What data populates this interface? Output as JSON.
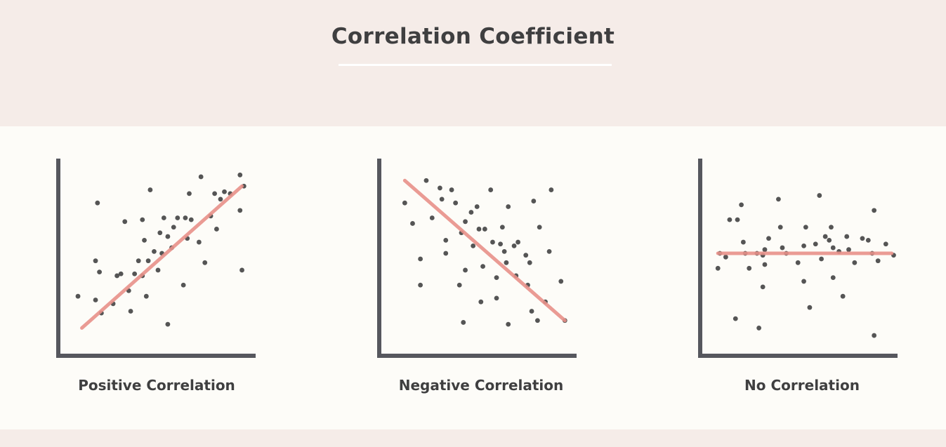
{
  "title": "Correlation Coefficient",
  "colors": {
    "axis": "#56575e",
    "point": "#555555",
    "trend": "#e8918a"
  },
  "chart_data": [
    {
      "type": "scatter",
      "title": "Positive Correlation",
      "xlim": [
        0,
        100
      ],
      "ylim": [
        0,
        100
      ],
      "trend": {
        "from": [
          11,
          13
        ],
        "to": [
          93,
          89
        ]
      },
      "points": [
        [
          9,
          30
        ],
        [
          18,
          28
        ],
        [
          19,
          80
        ],
        [
          18,
          49
        ],
        [
          20,
          43
        ],
        [
          21,
          21
        ],
        [
          27,
          26
        ],
        [
          29,
          41
        ],
        [
          31,
          42
        ],
        [
          33,
          70
        ],
        [
          35,
          33
        ],
        [
          36,
          22
        ],
        [
          38,
          42
        ],
        [
          40,
          49
        ],
        [
          42,
          41
        ],
        [
          42,
          71
        ],
        [
          43,
          60
        ],
        [
          44,
          30
        ],
        [
          45,
          49
        ],
        [
          46,
          87
        ],
        [
          48,
          54
        ],
        [
          50,
          44
        ],
        [
          51,
          64
        ],
        [
          52,
          53
        ],
        [
          53,
          72
        ],
        [
          55,
          62
        ],
        [
          55,
          15
        ],
        [
          57,
          56
        ],
        [
          58,
          67
        ],
        [
          60,
          72
        ],
        [
          63,
          36
        ],
        [
          64,
          72
        ],
        [
          65,
          61
        ],
        [
          66,
          85
        ],
        [
          67,
          71
        ],
        [
          71,
          59
        ],
        [
          72,
          94
        ],
        [
          74,
          48
        ],
        [
          77,
          73
        ],
        [
          79,
          85
        ],
        [
          80,
          66
        ],
        [
          82,
          82
        ],
        [
          84,
          86
        ],
        [
          87,
          85
        ],
        [
          92,
          95
        ],
        [
          92,
          76
        ],
        [
          93,
          44
        ],
        [
          94,
          89
        ]
      ]
    },
    {
      "type": "scatter",
      "title": "Negative Correlation",
      "xlim": [
        0,
        100
      ],
      "ylim": [
        0,
        100
      ],
      "trend": {
        "from": [
          12,
          92
        ],
        "to": [
          94,
          17
        ]
      },
      "points": [
        [
          12,
          80
        ],
        [
          16,
          69
        ],
        [
          20,
          50
        ],
        [
          20,
          36
        ],
        [
          23,
          92
        ],
        [
          26,
          72
        ],
        [
          30,
          88
        ],
        [
          31,
          82
        ],
        [
          33,
          60
        ],
        [
          33,
          53
        ],
        [
          36,
          87
        ],
        [
          38,
          80
        ],
        [
          40,
          36
        ],
        [
          41,
          64
        ],
        [
          42,
          16
        ],
        [
          43,
          70
        ],
        [
          43,
          44
        ],
        [
          46,
          75
        ],
        [
          47,
          57
        ],
        [
          49,
          78
        ],
        [
          50,
          66
        ],
        [
          51,
          27
        ],
        [
          52,
          46
        ],
        [
          53,
          66
        ],
        [
          56,
          87
        ],
        [
          57,
          59
        ],
        [
          59,
          40
        ],
        [
          59,
          29
        ],
        [
          61,
          58
        ],
        [
          62,
          67
        ],
        [
          63,
          54
        ],
        [
          64,
          48
        ],
        [
          65,
          78
        ],
        [
          65,
          15
        ],
        [
          68,
          57
        ],
        [
          69,
          41
        ],
        [
          70,
          59
        ],
        [
          74,
          52
        ],
        [
          75,
          36
        ],
        [
          76,
          48
        ],
        [
          77,
          22
        ],
        [
          78,
          81
        ],
        [
          80,
          17
        ],
        [
          81,
          67
        ],
        [
          84,
          27
        ],
        [
          86,
          54
        ],
        [
          87,
          87
        ],
        [
          92,
          38
        ],
        [
          94,
          17
        ]
      ]
    },
    {
      "type": "scatter",
      "title": "No Correlation",
      "xlim": [
        0,
        100
      ],
      "ylim": [
        0,
        100
      ],
      "trend": {
        "from": [
          8,
          53
        ],
        "to": [
          97,
          53
        ]
      },
      "points": [
        [
          8,
          45
        ],
        [
          9,
          53
        ],
        [
          12,
          51
        ],
        [
          14,
          71
        ],
        [
          17,
          18
        ],
        [
          18,
          71
        ],
        [
          20,
          79
        ],
        [
          21,
          59
        ],
        [
          22,
          53
        ],
        [
          24,
          45
        ],
        [
          28,
          53
        ],
        [
          29,
          13
        ],
        [
          31,
          52
        ],
        [
          32,
          55
        ],
        [
          31,
          35
        ],
        [
          32,
          47
        ],
        [
          34,
          61
        ],
        [
          39,
          82
        ],
        [
          40,
          67
        ],
        [
          41,
          56
        ],
        [
          43,
          53
        ],
        [
          49,
          48
        ],
        [
          52,
          57
        ],
        [
          52,
          38
        ],
        [
          53,
          67
        ],
        [
          55,
          24
        ],
        [
          58,
          58
        ],
        [
          60,
          84
        ],
        [
          61,
          50
        ],
        [
          63,
          62
        ],
        [
          65,
          60
        ],
        [
          66,
          67
        ],
        [
          67,
          56
        ],
        [
          67,
          40
        ],
        [
          70,
          54
        ],
        [
          72,
          30
        ],
        [
          74,
          62
        ],
        [
          75,
          55
        ],
        [
          78,
          48
        ],
        [
          82,
          61
        ],
        [
          85,
          60
        ],
        [
          87,
          53
        ],
        [
          88,
          76
        ],
        [
          88,
          9
        ],
        [
          90,
          49
        ],
        [
          94,
          58
        ],
        [
          98,
          52
        ]
      ]
    }
  ]
}
